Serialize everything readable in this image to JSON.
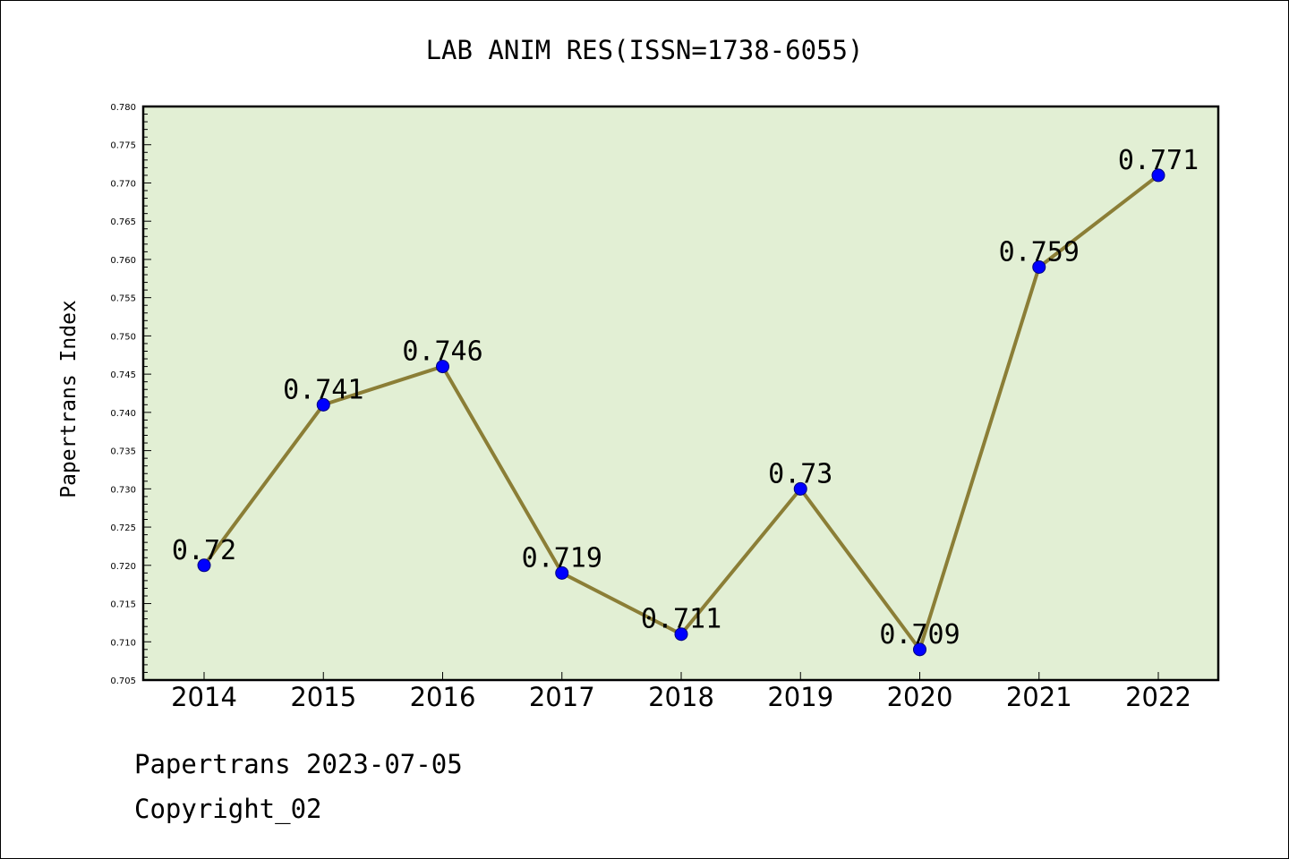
{
  "chart_data": {
    "type": "line",
    "title": "LAB ANIM RES(ISSN=1738-6055)",
    "ylabel": "Papertrans Index",
    "xlabel": "",
    "categories": [
      "2014",
      "2015",
      "2016",
      "2017",
      "2018",
      "2019",
      "2020",
      "2021",
      "2022"
    ],
    "series": [
      {
        "values": [
          0.72,
          0.741,
          0.746,
          0.719,
          0.711,
          0.73,
          0.709,
          0.759,
          0.771
        ],
        "data_labels": [
          "0.72",
          "0.741",
          "0.746",
          "0.719",
          "0.711",
          "0.73",
          "0.709",
          "0.759",
          "0.771"
        ],
        "line_color": "#8b7e36",
        "marker_color": "#0000ff"
      }
    ],
    "ylim": [
      0.705,
      0.78
    ],
    "y_major_ticks": [
      "0.705",
      "0.710",
      "0.715",
      "0.720",
      "0.725",
      "0.730",
      "0.735",
      "0.740",
      "0.745",
      "0.750",
      "0.755",
      "0.760",
      "0.765",
      "0.770",
      "0.775",
      "0.780"
    ],
    "y_minor_step": 0.001,
    "grid": false,
    "legend": "none",
    "plot_background": "#e2efd4"
  },
  "footer": {
    "line1": "Papertrans 2023-07-05",
    "line2": "Copyright_02"
  }
}
